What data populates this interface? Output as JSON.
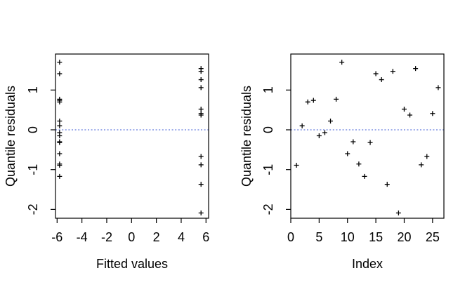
{
  "figure": {
    "background": "#ffffff",
    "marker_color": "#000000",
    "axis_color": "#000000",
    "ref_line_color": "#3c5ad6"
  },
  "chart_data": [
    {
      "type": "scatter",
      "title": "",
      "xlabel": "Fitted values",
      "ylabel": "Quantile residuals",
      "marker": "plus",
      "x": [
        -5.8,
        -5.8,
        -5.8,
        -5.8,
        -5.8,
        -5.8,
        -5.8,
        -5.8,
        -5.8,
        -5.8,
        -5.8,
        -5.8,
        -5.8,
        -5.8,
        -5.8,
        5.6,
        5.6,
        5.6,
        5.6,
        5.6,
        5.6,
        5.6,
        5.6,
        5.6,
        5.6,
        5.6
      ],
      "y": [
        -0.89,
        0.1,
        0.7,
        0.74,
        -0.15,
        -0.07,
        0.22,
        0.77,
        1.7,
        -0.6,
        -0.3,
        -0.86,
        -1.17,
        -0.32,
        1.41,
        1.26,
        -1.37,
        1.47,
        -2.09,
        0.52,
        0.37,
        1.54,
        -0.88,
        -0.67,
        0.41,
        1.06
      ],
      "xticks": [
        -6,
        -4,
        -2,
        0,
        2,
        4,
        6
      ],
      "yticks": [
        -2,
        -1,
        0,
        1
      ],
      "xlim": [
        -6.13,
        6.21
      ],
      "ylim": [
        -2.2222,
        1.9048
      ],
      "ref_line_y": 0,
      "grid": false,
      "legend": null
    },
    {
      "type": "scatter",
      "title": "",
      "xlabel": "Index",
      "ylabel": "Quantile residuals",
      "marker": "plus",
      "x": [
        1,
        2,
        3,
        4,
        5,
        6,
        7,
        8,
        9,
        10,
        11,
        12,
        13,
        14,
        15,
        16,
        17,
        18,
        19,
        20,
        21,
        22,
        23,
        24,
        25,
        26
      ],
      "y": [
        -0.89,
        0.1,
        0.7,
        0.74,
        -0.15,
        -0.07,
        0.22,
        0.77,
        1.7,
        -0.6,
        -0.3,
        -0.86,
        -1.17,
        -0.32,
        1.41,
        1.26,
        -1.37,
        1.47,
        -2.09,
        0.52,
        0.37,
        1.54,
        -0.88,
        -0.67,
        0.41,
        1.06
      ],
      "xticks": [
        0,
        5,
        10,
        15,
        20,
        25
      ],
      "yticks": [
        -2,
        -1,
        0,
        1
      ],
      "xlim": [
        0,
        27
      ],
      "ylim": [
        -2.2222,
        1.9048
      ],
      "ref_line_y": 0,
      "grid": false,
      "legend": null
    }
  ]
}
